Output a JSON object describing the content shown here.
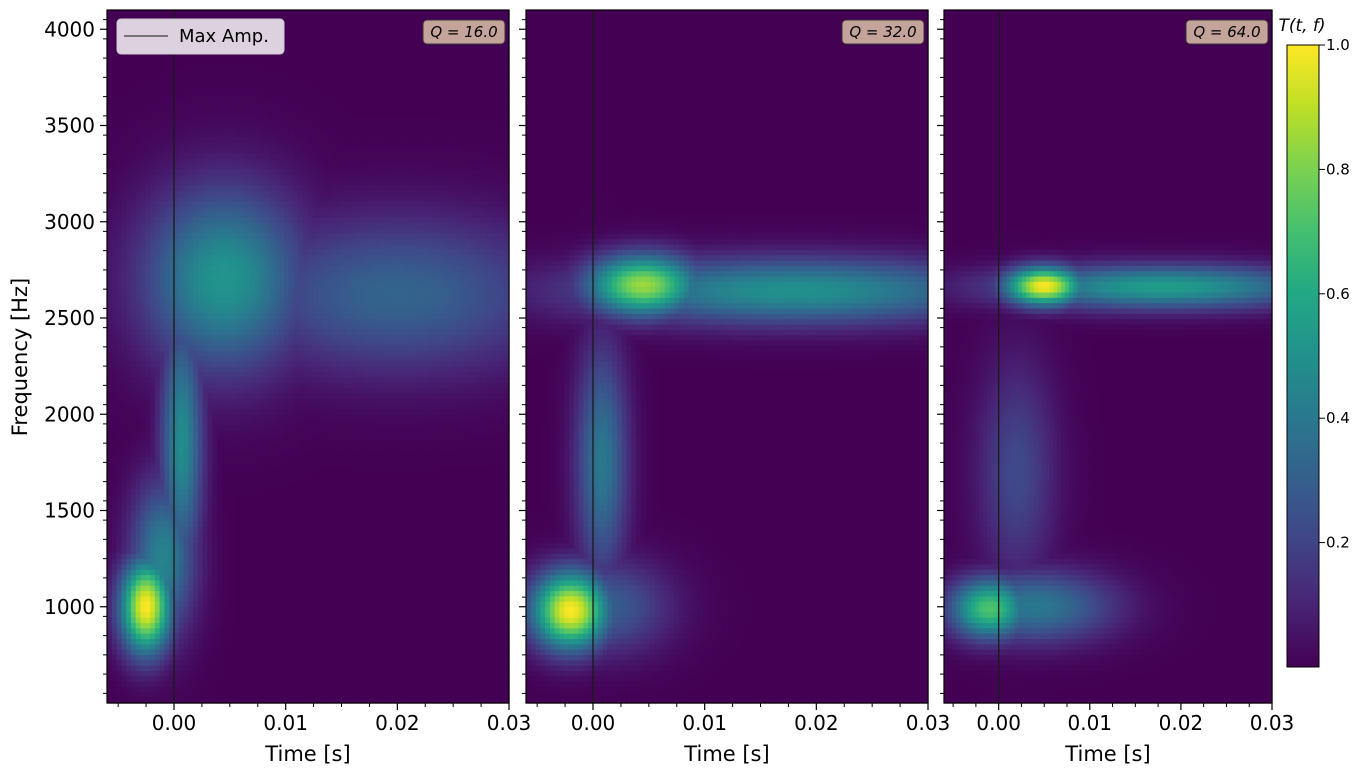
{
  "chart_data": {
    "type": "heatmap",
    "ylabel": "Frequency [Hz]",
    "xlabel": "Time [s]",
    "xlim": [
      -0.006,
      0.03
    ],
    "ylim": [
      500,
      4100
    ],
    "x_ticks": [
      0.0,
      0.01,
      0.02,
      0.03
    ],
    "x_tick_labels": [
      "0.00",
      "0.01",
      "0.02",
      "0.03"
    ],
    "y_ticks": [
      1000,
      1500,
      2000,
      2500,
      3000,
      3500,
      4000
    ],
    "y_tick_labels": [
      "1000",
      "1500",
      "2000",
      "2500",
      "3000",
      "3500",
      "4000"
    ],
    "legend": {
      "label": "Max Amp.",
      "location": "upper-left",
      "line_color": "#555555"
    },
    "max_amplitude_time": 0.0,
    "colormap": "viridis",
    "colorbar": {
      "label": "T(t, f)",
      "range": [
        0.0,
        1.0
      ],
      "ticks": [
        0.2,
        0.4,
        0.6,
        0.8,
        1.0
      ],
      "tick_labels": [
        "0.2",
        "0.4",
        "0.6",
        "0.8",
        "1.0"
      ]
    },
    "panels": [
      {
        "q_label": "Q = 16.0",
        "blobs": [
          {
            "t": -0.0025,
            "f": 1000,
            "st": 0.0016,
            "sf": 170,
            "a": 1.0
          },
          {
            "t": -0.001,
            "f": 1250,
            "st": 0.002,
            "sf": 280,
            "a": 0.45
          },
          {
            "t": 0.0007,
            "f": 1850,
            "st": 0.0013,
            "sf": 450,
            "a": 0.48
          },
          {
            "t": 0.0045,
            "f": 2700,
            "st": 0.005,
            "sf": 330,
            "a": 0.52
          },
          {
            "t": 0.02,
            "f": 2620,
            "st": 0.01,
            "sf": 280,
            "a": 0.32
          }
        ]
      },
      {
        "q_label": "Q = 32.0",
        "blobs": [
          {
            "t": -0.002,
            "f": 980,
            "st": 0.0024,
            "sf": 140,
            "a": 1.0
          },
          {
            "t": 0.001,
            "f": 1000,
            "st": 0.004,
            "sf": 170,
            "a": 0.3
          },
          {
            "t": 0.0008,
            "f": 1750,
            "st": 0.0016,
            "sf": 420,
            "a": 0.4
          },
          {
            "t": 0.0045,
            "f": 2670,
            "st": 0.0035,
            "sf": 110,
            "a": 0.85
          },
          {
            "t": 0.018,
            "f": 2640,
            "st": 0.013,
            "sf": 120,
            "a": 0.5
          }
        ]
      },
      {
        "q_label": "Q = 64.0",
        "blobs": [
          {
            "t": -0.001,
            "f": 990,
            "st": 0.003,
            "sf": 110,
            "a": 0.72
          },
          {
            "t": 0.004,
            "f": 1000,
            "st": 0.006,
            "sf": 130,
            "a": 0.4
          },
          {
            "t": 0.002,
            "f": 1700,
            "st": 0.003,
            "sf": 400,
            "a": 0.22
          },
          {
            "t": 0.005,
            "f": 2665,
            "st": 0.003,
            "sf": 70,
            "a": 1.0
          },
          {
            "t": 0.018,
            "f": 2660,
            "st": 0.012,
            "sf": 80,
            "a": 0.55
          }
        ]
      }
    ]
  }
}
